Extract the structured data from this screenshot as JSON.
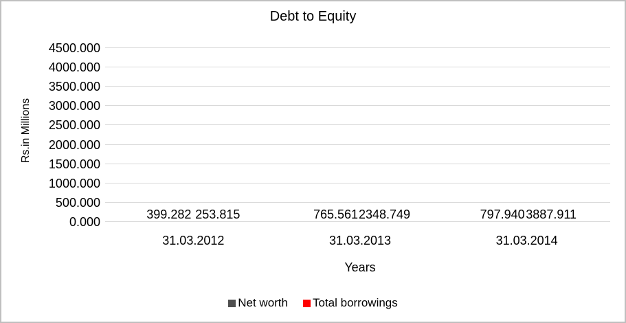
{
  "window": {
    "background_color": "#ffffff",
    "border_color": "#bfbfbf"
  },
  "chart_data": {
    "type": "bar",
    "title": "Debt to Equity",
    "xlabel": "Years",
    "ylabel": "Rs.in Millions",
    "categories": [
      "31.03.2012",
      "31.03.2013",
      "31.03.2014"
    ],
    "series": [
      {
        "name": "Net worth",
        "color": "#4f4f4f",
        "values": [
          399.282,
          765.561,
          797.94
        ],
        "labels": [
          "399.282",
          "765.561",
          "797.940"
        ]
      },
      {
        "name": "Total borrowings",
        "color": "#ff0000",
        "values": [
          253.815,
          2348.749,
          3887.911
        ],
        "labels": [
          "253.815",
          "2348.749",
          "3887.911"
        ]
      }
    ],
    "ylim": [
      0,
      4500
    ],
    "y_ticks": [
      {
        "value": 0,
        "label": "0.000"
      },
      {
        "value": 500,
        "label": "500.000"
      },
      {
        "value": 1000,
        "label": "1000.000"
      },
      {
        "value": 1500,
        "label": "1500.000"
      },
      {
        "value": 2000,
        "label": "2000.000"
      },
      {
        "value": 2500,
        "label": "2500.000"
      },
      {
        "value": 3000,
        "label": "3000.000"
      },
      {
        "value": 3500,
        "label": "3500.000"
      },
      {
        "value": 4000,
        "label": "4000.000"
      },
      {
        "value": 4500,
        "label": "4500.000"
      }
    ],
    "grid": true,
    "gridline_color": "#d9d9d9",
    "legend_position": "bottom"
  }
}
